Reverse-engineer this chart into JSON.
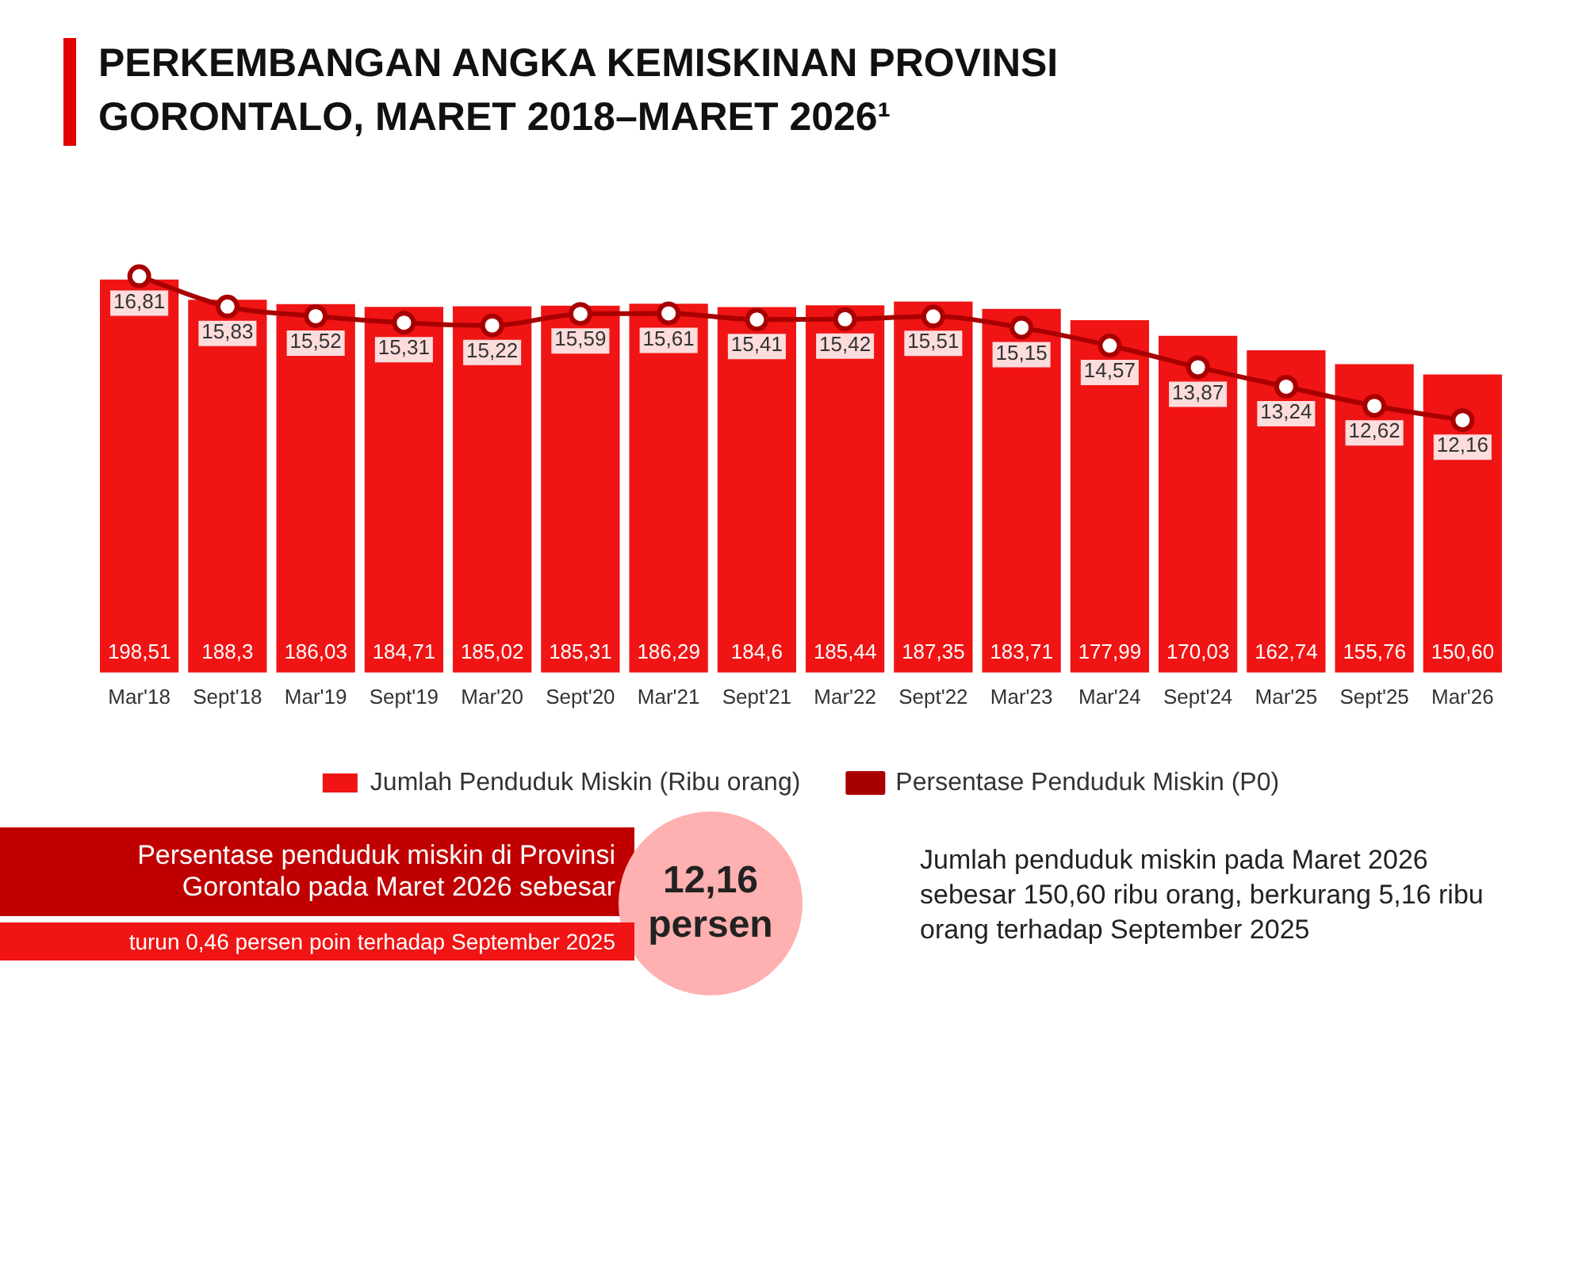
{
  "chart_data": {
    "type": "bar",
    "title": "PERKEMBANGAN ANGKA KEMISKINAN PROVINSI GORONTALO, MARET 2018–MARET 2026¹",
    "categories": [
      "Mar'18",
      "Sept'18",
      "Mar'19",
      "Sept'19",
      "Mar'20",
      "Sept'20",
      "Mar'21",
      "Sept'21",
      "Mar'22",
      "Sept'22",
      "Mar'23",
      "Mar'24",
      "Sept'24",
      "Mar'25",
      "Sept'25",
      "Mar'26"
    ],
    "series": [
      {
        "name": "Jumlah Penduduk Miskin (Ribu orang)",
        "color": "#f01414",
        "values": [
          198.51,
          188.3,
          186.03,
          184.71,
          185.02,
          185.31,
          186.29,
          184.6,
          185.44,
          187.35,
          183.71,
          177.99,
          170.03,
          162.74,
          155.76,
          150.6
        ],
        "value_labels": [
          "198,51",
          "188,3",
          "186,03",
          "184,71",
          "185,02",
          "185,31",
          "186,29",
          "184,6",
          "185,44",
          "187,35",
          "183,71",
          "177,99",
          "170,03",
          "162,74",
          "155,76",
          "150,60"
        ]
      },
      {
        "name": "Persentase Penduduk Miskin (P0)",
        "type": "line",
        "axis": "y2",
        "color": "#a80000",
        "values": [
          16.81,
          15.83,
          15.52,
          15.31,
          15.22,
          15.59,
          15.61,
          15.41,
          15.42,
          15.51,
          15.15,
          14.57,
          13.87,
          13.24,
          12.62,
          12.16
        ],
        "value_labels": [
          "16,81",
          "15,83",
          "15,52",
          "15,31",
          "15,22",
          "15,59",
          "15,61",
          "15,41",
          "15,42",
          "15,51",
          "15,15",
          "14,57",
          "13,87",
          "13,24",
          "12,62",
          "12,16"
        ]
      }
    ],
    "tick_labels": "x",
    "grid": false,
    "legend": "bottom",
    "marker": "circle",
    "line_style": "solid",
    "annotations": [
      "Persentase penduduk miskin di Provinsi Gorontalo pada Maret 2026 sebesar",
      "12,16 persen",
      "turun 0,46 persen poin terhadap September 2025",
      "Jumlah penduduk miskin pada Maret 2026 sebesar 150,60 ribu orang, berkurang 5,16 ribu orang terhadap September 2025"
    ]
  }
}
